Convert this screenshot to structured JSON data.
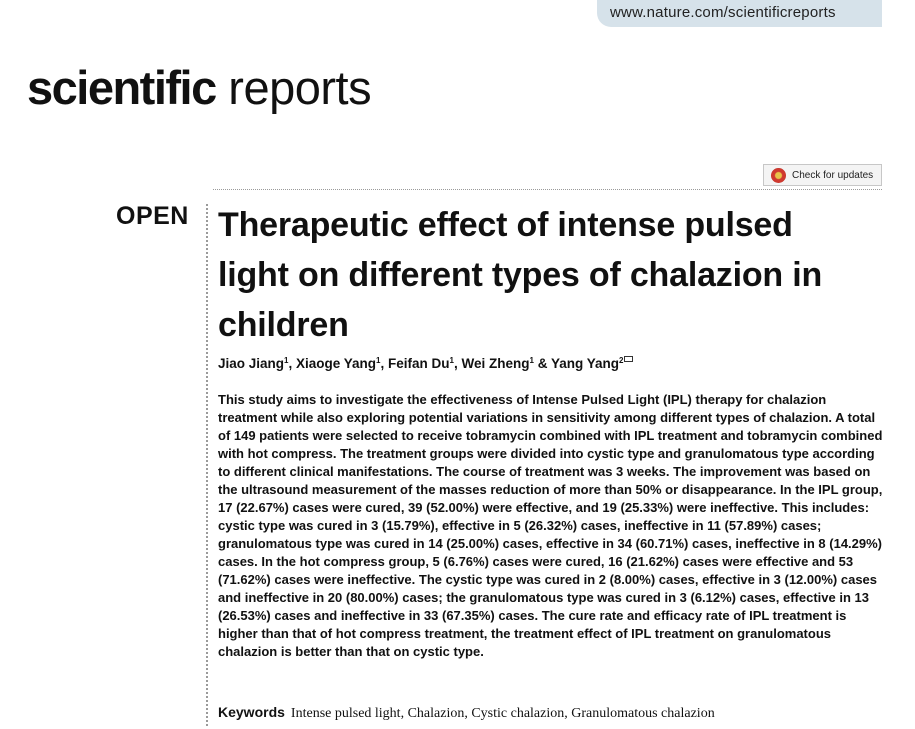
{
  "header": {
    "url": "www.nature.com/scientificreports",
    "journal_name_bold": "scientific",
    "journal_name_light": " reports",
    "check_updates_label": "Check for updates"
  },
  "article": {
    "access_label": "OPEN",
    "title": "Therapeutic effect of intense pulsed light on different types of chalazion in children",
    "authors": [
      {
        "name": "Jiao Jiang",
        "sup": "1",
        "sep": ", "
      },
      {
        "name": "Xiaoge Yang",
        "sup": "1",
        "sep": ", "
      },
      {
        "name": "Feifan Du",
        "sup": "1",
        "sep": ", "
      },
      {
        "name": "Wei Zheng",
        "sup": "1",
        "sep": " & "
      },
      {
        "name": "Yang Yang",
        "sup": "2",
        "sep": ""
      }
    ],
    "abstract": "This study aims to investigate the effectiveness of Intense Pulsed Light (IPL) therapy for chalazion treatment while also exploring potential variations in sensitivity among different types of chalazion. A total of 149 patients were selected to receive tobramycin combined with IPL treatment and tobramycin combined with hot compress. The treatment groups were divided into cystic type and granulomatous type according to different clinical manifestations. The course of treatment was 3 weeks. The improvement was based on the ultrasound measurement of the masses reduction of more than 50% or disappearance. In the IPL group, 17 (22.67%) cases were cured, 39 (52.00%) were effective, and 19 (25.33%) were ineffective. This includes: cystic type was cured in 3 (15.79%), effective in 5 (26.32%) cases, ineffective in 11 (57.89%) cases; granulomatous type was cured in 14 (25.00%) cases, effective in 34 (60.71%) cases, ineffective in 8 (14.29%) cases. In the hot compress group, 5 (6.76%) cases were cured, 16 (21.62%) cases were effective and 53 (71.62%) cases were ineffective. The cystic type was cured in 2 (8.00%) cases, effective in 3 (12.00%) cases and ineffective in 20 (80.00%) cases; the granulomatous type was cured in 3 (6.12%) cases, effective in 13 (26.53%) cases and ineffective in 33 (67.35%) cases. The cure rate and efficacy rate of IPL treatment is higher than that of hot compress treatment, the treatment effect of IPL treatment on granulomatous chalazion is better than that on cystic type.",
    "keywords_label": "Keywords",
    "keywords": "Intense pulsed light, Chalazion, Cystic chalazion, Granulomatous chalazion"
  }
}
